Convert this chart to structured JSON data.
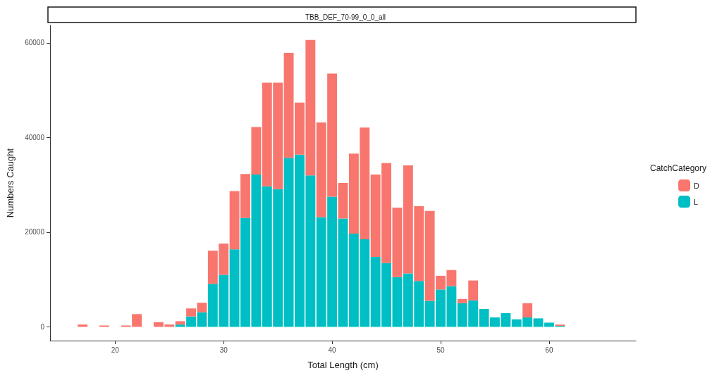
{
  "chart_data": {
    "type": "bar",
    "title": "TBB_DEF_70-99_0_0_all",
    "xlabel": "Total Length (cm)",
    "ylabel": "Numbers Caught",
    "legend_title": "CatchCategory",
    "x": [
      17,
      18,
      19,
      20,
      21,
      22,
      23,
      24,
      25,
      26,
      27,
      28,
      29,
      30,
      31,
      32,
      33,
      34,
      35,
      36,
      37,
      38,
      39,
      40,
      41,
      42,
      43,
      44,
      45,
      46,
      47,
      48,
      49,
      50,
      51,
      52,
      53,
      54,
      55,
      56,
      57,
      58,
      59,
      60,
      61
    ],
    "series": [
      {
        "name": "L",
        "color": "#00bfc4",
        "values": [
          null,
          null,
          null,
          null,
          null,
          null,
          null,
          null,
          null,
          500,
          2200,
          3100,
          9100,
          11000,
          16400,
          23000,
          32200,
          29700,
          29100,
          35700,
          36400,
          32000,
          23200,
          27500,
          22900,
          19700,
          18500,
          14800,
          13500,
          10500,
          11300,
          9700,
          5500,
          7900,
          8600,
          5000,
          5600,
          3800,
          2000,
          2900,
          1600,
          2000,
          1800,
          900,
          200
        ]
      },
      {
        "name": "D",
        "color": "#f8766d",
        "values": [
          500,
          null,
          300,
          null,
          300,
          2700,
          null,
          1000,
          500,
          700,
          1700,
          2000,
          7000,
          6600,
          12300,
          9300,
          10000,
          21900,
          22500,
          22200,
          11000,
          28600,
          20000,
          26000,
          7500,
          16900,
          23600,
          17400,
          21100,
          14700,
          22800,
          15800,
          19000,
          2900,
          3400,
          900,
          4200,
          null,
          null,
          null,
          null,
          3000,
          null,
          null,
          300
        ]
      }
    ],
    "stacked": true,
    "xlim": [
      14,
      68
    ],
    "xticks": [
      20,
      30,
      40,
      50,
      60
    ],
    "ylim": [
      -2900,
      63700
    ],
    "yticks": [
      0,
      20000,
      40000,
      60000
    ],
    "grid": false,
    "legend": "right"
  }
}
